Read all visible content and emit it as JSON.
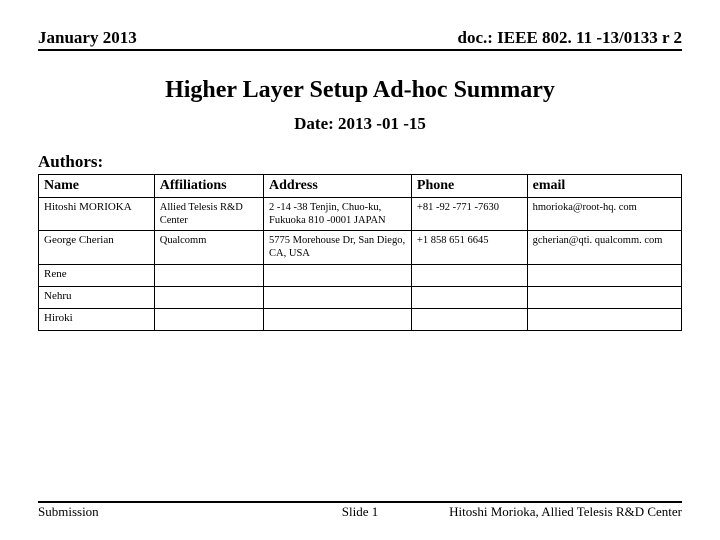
{
  "header": {
    "left": "January 2013",
    "right": "doc.: IEEE 802. 11 -13/0133 r 2"
  },
  "title": "Higher Layer Setup Ad-hoc Summary",
  "date_line": "Date: 2013 -01 -15",
  "authors_label": "Authors:",
  "table": {
    "columns": [
      "Name",
      "Affiliations",
      "Address",
      "Phone",
      "email"
    ],
    "rows": [
      {
        "name": "Hitoshi MORIOKA",
        "affiliations": "Allied Telesis R&D Center",
        "address": "2 -14 -38 Tenjin, Chuo-ku, Fukuoka 810 -0001 JAPAN",
        "phone": "+81 -92 -771 -7630",
        "email": "hmorioka@root-hq. com"
      },
      {
        "name": "George Cherian",
        "affiliations": "Qualcomm",
        "address": "5775 Morehouse Dr, San Diego, CA, USA",
        "phone": "+1 858 651 6645",
        "email": "gcherian@qti. qualcomm. com"
      },
      {
        "name": "Rene",
        "affiliations": "",
        "address": "",
        "phone": "",
        "email": ""
      },
      {
        "name": "Nehru",
        "affiliations": "",
        "address": "",
        "phone": "",
        "email": ""
      },
      {
        "name": "Hiroki",
        "affiliations": "",
        "address": "",
        "phone": "",
        "email": ""
      }
    ]
  },
  "footer": {
    "left": "Submission",
    "center": "Slide 1",
    "right": "Hitoshi Morioka, Allied Telesis R&D Center"
  }
}
